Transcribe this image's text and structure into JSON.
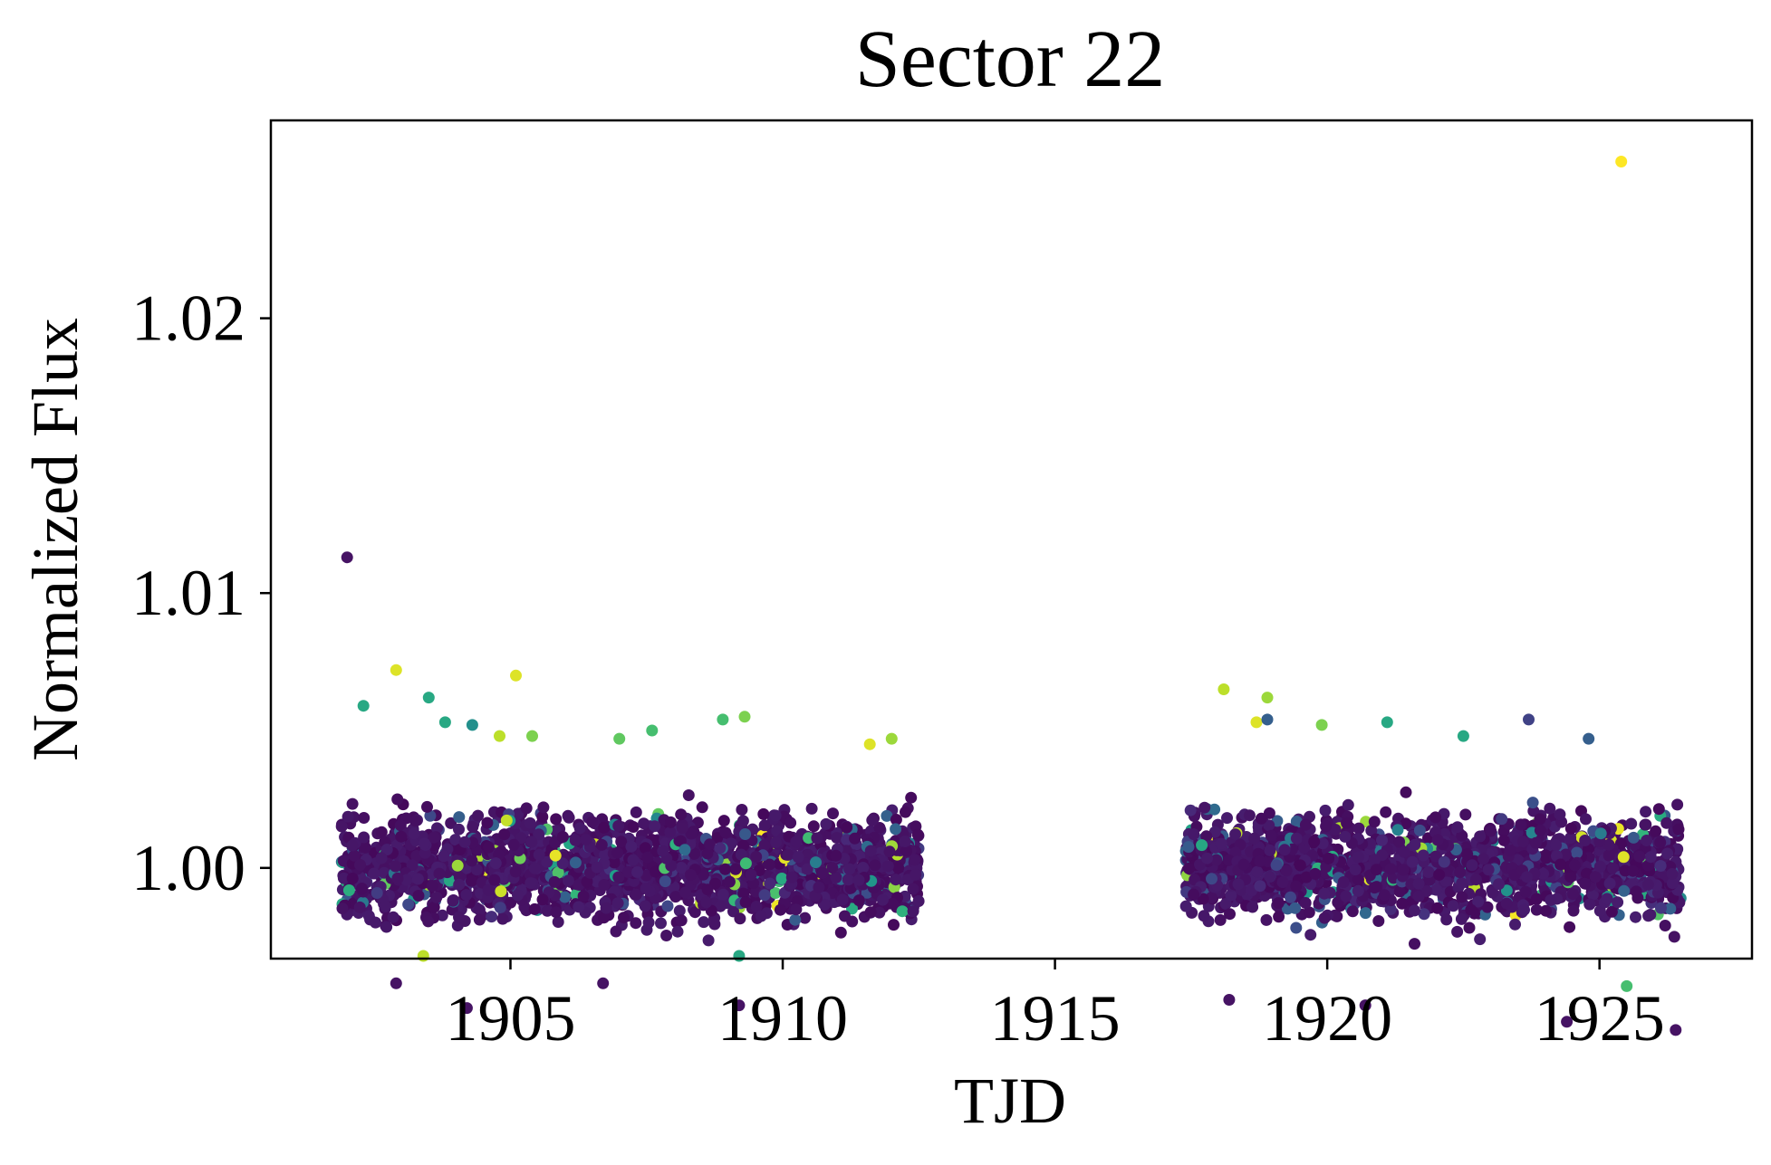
{
  "chart_data": {
    "type": "scatter",
    "title": "Sector 22",
    "xlabel": "TJD",
    "ylabel": "Normalized Flux",
    "xlim": [
      1900.6,
      1927.8
    ],
    "ylim": [
      0.9967,
      1.0272
    ],
    "xticks": [
      1905,
      1910,
      1915,
      1920,
      1925
    ],
    "xtick_labels": [
      "1905",
      "1910",
      "1915",
      "1920",
      "1925"
    ],
    "yticks": [
      1.0,
      1.01,
      1.02
    ],
    "ytick_labels": [
      "1.00",
      "1.01",
      "1.02"
    ],
    "grid": false,
    "legend": "none",
    "colormap": "viridis",
    "segments": [
      {
        "x_start": 1901.9,
        "x_end": 1912.5,
        "y_center": 1.0,
        "y_band": 0.0032
      },
      {
        "x_start": 1917.4,
        "x_end": 1926.5,
        "y_center": 1.0,
        "y_band": 0.0032
      }
    ],
    "points": [
      {
        "x": 1902.0,
        "y": 1.0113,
        "c": 0.05
      },
      {
        "x": 1925.4,
        "y": 1.0257,
        "c": 1.0
      },
      {
        "x": 1902.9,
        "y": 1.0072,
        "c": 0.95
      },
      {
        "x": 1905.1,
        "y": 1.007,
        "c": 0.95
      },
      {
        "x": 1903.5,
        "y": 1.0062,
        "c": 0.6
      },
      {
        "x": 1902.3,
        "y": 1.0059,
        "c": 0.6
      },
      {
        "x": 1918.1,
        "y": 1.0065,
        "c": 0.9
      },
      {
        "x": 1918.9,
        "y": 1.0062,
        "c": 0.85
      },
      {
        "x": 1918.7,
        "y": 1.0053,
        "c": 0.95
      },
      {
        "x": 1918.9,
        "y": 1.0054,
        "c": 0.3
      },
      {
        "x": 1909.3,
        "y": 1.0055,
        "c": 0.8
      },
      {
        "x": 1908.9,
        "y": 1.0054,
        "c": 0.7
      },
      {
        "x": 1903.8,
        "y": 1.0053,
        "c": 0.6
      },
      {
        "x": 1904.3,
        "y": 1.0052,
        "c": 0.5
      },
      {
        "x": 1921.1,
        "y": 1.0053,
        "c": 0.6
      },
      {
        "x": 1923.7,
        "y": 1.0054,
        "c": 0.2
      },
      {
        "x": 1924.8,
        "y": 1.0047,
        "c": 0.3
      },
      {
        "x": 1919.9,
        "y": 1.0052,
        "c": 0.8
      },
      {
        "x": 1904.8,
        "y": 1.0048,
        "c": 0.9
      },
      {
        "x": 1905.4,
        "y": 1.0048,
        "c": 0.8
      },
      {
        "x": 1907.0,
        "y": 1.0047,
        "c": 0.75
      },
      {
        "x": 1907.6,
        "y": 1.005,
        "c": 0.7
      },
      {
        "x": 1911.6,
        "y": 1.0045,
        "c": 0.95
      },
      {
        "x": 1912.0,
        "y": 1.0047,
        "c": 0.85
      },
      {
        "x": 1922.5,
        "y": 1.0048,
        "c": 0.6
      },
      {
        "x": 1918.2,
        "y": 0.9952,
        "c": 0.05
      },
      {
        "x": 1904.2,
        "y": 0.9949,
        "c": 0.05
      },
      {
        "x": 1909.2,
        "y": 0.995,
        "c": 0.05
      },
      {
        "x": 1920.7,
        "y": 0.995,
        "c": 0.05
      },
      {
        "x": 1924.4,
        "y": 0.9944,
        "c": 0.05
      },
      {
        "x": 1926.4,
        "y": 0.9941,
        "c": 0.05
      },
      {
        "x": 1925.5,
        "y": 0.9957,
        "c": 0.7
      },
      {
        "x": 1909.2,
        "y": 0.9968,
        "c": 0.6
      },
      {
        "x": 1903.4,
        "y": 0.9968,
        "c": 0.9
      },
      {
        "x": 1902.9,
        "y": 0.9958,
        "c": 0.05
      },
      {
        "x": 1906.7,
        "y": 0.9958,
        "c": 0.05
      }
    ]
  }
}
